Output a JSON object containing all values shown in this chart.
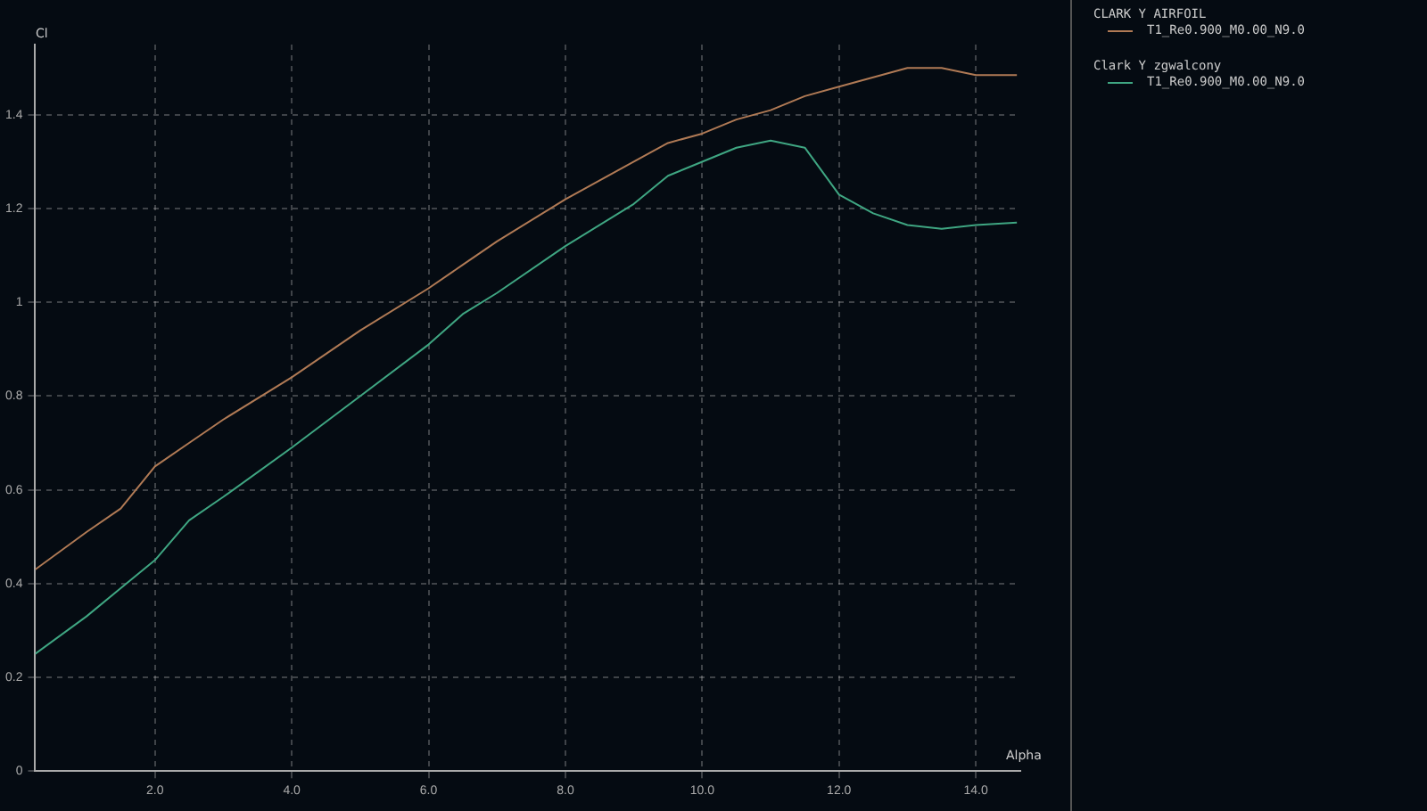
{
  "chart_data": {
    "type": "line",
    "xlabel": "Alpha",
    "ylabel": "Cl",
    "x": [
      0.25,
      1.0,
      1.5,
      2.0,
      2.5,
      3.0,
      4.0,
      5.0,
      6.0,
      6.5,
      7.0,
      8.0,
      9.0,
      9.5,
      10.0,
      10.5,
      11.0,
      11.5,
      12.0,
      12.5,
      13.0,
      13.5,
      14.0,
      14.6
    ],
    "series": [
      {
        "name": "CLARK Y AIRFOIL\nT1_Re0.900_M0.00_N9.0",
        "color": "#b07a55",
        "values": [
          0.43,
          0.51,
          0.56,
          0.65,
          0.7,
          0.75,
          0.84,
          0.94,
          1.03,
          1.08,
          1.13,
          1.22,
          1.3,
          1.34,
          1.36,
          1.39,
          1.41,
          1.44,
          1.46,
          1.48,
          1.5,
          1.5,
          1.485,
          1.485
        ]
      },
      {
        "name": "Clark Y zgwalcony\nT1_Re0.900_M0.00_N9.0",
        "color": "#3fa682",
        "values": [
          0.25,
          0.33,
          0.39,
          0.45,
          0.535,
          0.585,
          0.69,
          0.8,
          0.91,
          0.975,
          1.02,
          1.12,
          1.21,
          1.27,
          1.3,
          1.33,
          1.345,
          1.33,
          1.23,
          1.19,
          1.165,
          1.157,
          1.165,
          1.17
        ]
      }
    ],
    "xlim": [
      0.25,
      14.65
    ],
    "ylim": [
      0,
      1.55
    ],
    "xticks": [
      {
        "value": 2,
        "label": "2.0"
      },
      {
        "value": 4,
        "label": "4.0"
      },
      {
        "value": 6,
        "label": "6.0"
      },
      {
        "value": 8,
        "label": "8.0"
      },
      {
        "value": 10,
        "label": "10.0"
      },
      {
        "value": 12,
        "label": "12.0"
      },
      {
        "value": 14,
        "label": "14.0"
      }
    ],
    "yticks": [
      0,
      0.2,
      0.4,
      0.6,
      0.8,
      1.0,
      1.2,
      1.4
    ],
    "grid": true,
    "legend": "right",
    "line_style": "solid",
    "marker": "none"
  }
}
